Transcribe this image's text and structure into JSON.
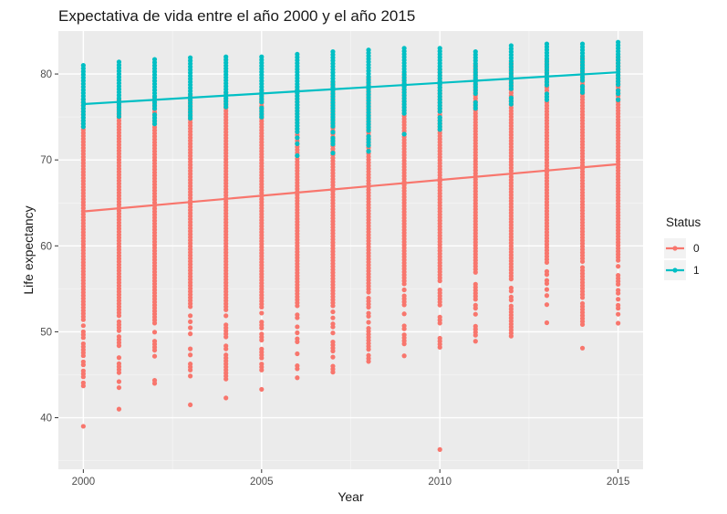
{
  "chart_data": {
    "type": "scatter",
    "title": "Expectativa de vida entre el año 2000 y el año 2015",
    "xlabel": "Year",
    "ylabel": "Life expectancy",
    "xlim": [
      1999.3,
      2015.7
    ],
    "ylim": [
      34,
      85
    ],
    "x_ticks": [
      2000,
      2005,
      2010,
      2015
    ],
    "y_ticks": [
      40,
      50,
      60,
      70,
      80
    ],
    "grid": true,
    "legend": {
      "title": "Status",
      "position": "right"
    },
    "series": [
      {
        "name": "0",
        "color": "#F8766D",
        "columns": [
          {
            "x": 2000,
            "min": 43.0,
            "max": 77.0,
            "extra": [
              39.0
            ]
          },
          {
            "x": 2001,
            "min": 43.5,
            "max": 77.0,
            "extra": [
              41.0
            ]
          },
          {
            "x": 2002,
            "min": 44.0,
            "max": 77.3,
            "extra": []
          },
          {
            "x": 2003,
            "min": 44.5,
            "max": 77.5,
            "extra": [
              41.5
            ]
          },
          {
            "x": 2004,
            "min": 44.5,
            "max": 77.8,
            "extra": [
              42.3
            ]
          },
          {
            "x": 2005,
            "min": 44.5,
            "max": 78.0,
            "extra": [
              43.3
            ]
          },
          {
            "x": 2006,
            "min": 44.3,
            "max": 78.5,
            "extra": []
          },
          {
            "x": 2007,
            "min": 45.3,
            "max": 79.0,
            "extra": []
          },
          {
            "x": 2008,
            "min": 46.2,
            "max": 79.5,
            "extra": []
          },
          {
            "x": 2009,
            "min": 47.2,
            "max": 80.0,
            "extra": []
          },
          {
            "x": 2010,
            "min": 48.2,
            "max": 80.5,
            "extra": [
              36.3
            ]
          },
          {
            "x": 2011,
            "min": 48.9,
            "max": 81.0,
            "extra": []
          },
          {
            "x": 2012,
            "min": 49.5,
            "max": 81.3,
            "extra": []
          },
          {
            "x": 2013,
            "min": 50.0,
            "max": 81.6,
            "extra": []
          },
          {
            "x": 2014,
            "min": 50.5,
            "max": 81.9,
            "extra": [
              48.1
            ]
          },
          {
            "x": 2015,
            "min": 51.0,
            "max": 82.0,
            "extra": []
          }
        ],
        "trend": {
          "x": [
            2000,
            2015
          ],
          "y": [
            64.0,
            69.5
          ]
        }
      },
      {
        "name": "1",
        "color": "#00BFC4",
        "columns": [
          {
            "x": 2000,
            "min": 73.5,
            "max": 81.0,
            "extra": []
          },
          {
            "x": 2001,
            "min": 74.0,
            "max": 81.4,
            "extra": []
          },
          {
            "x": 2002,
            "min": 74.2,
            "max": 81.7,
            "extra": []
          },
          {
            "x": 2003,
            "min": 74.5,
            "max": 81.9,
            "extra": []
          },
          {
            "x": 2004,
            "min": 74.8,
            "max": 82.0,
            "extra": []
          },
          {
            "x": 2005,
            "min": 75.0,
            "max": 82.0,
            "extra": []
          },
          {
            "x": 2006,
            "min": 70.5,
            "max": 82.3,
            "extra": []
          },
          {
            "x": 2007,
            "min": 70.8,
            "max": 82.6,
            "extra": []
          },
          {
            "x": 2008,
            "min": 71.0,
            "max": 82.8,
            "extra": []
          },
          {
            "x": 2009,
            "min": 73.0,
            "max": 83.0,
            "extra": []
          },
          {
            "x": 2010,
            "min": 73.2,
            "max": 83.0,
            "extra": []
          },
          {
            "x": 2011,
            "min": 76.0,
            "max": 82.6,
            "extra": []
          },
          {
            "x": 2012,
            "min": 76.5,
            "max": 83.3,
            "extra": []
          },
          {
            "x": 2013,
            "min": 77.0,
            "max": 83.5,
            "extra": []
          },
          {
            "x": 2014,
            "min": 77.5,
            "max": 83.5,
            "extra": []
          },
          {
            "x": 2015,
            "min": 77.0,
            "max": 83.7,
            "extra": []
          }
        ],
        "trend": {
          "x": [
            2000,
            2015
          ],
          "y": [
            76.5,
            80.2
          ]
        }
      }
    ]
  }
}
